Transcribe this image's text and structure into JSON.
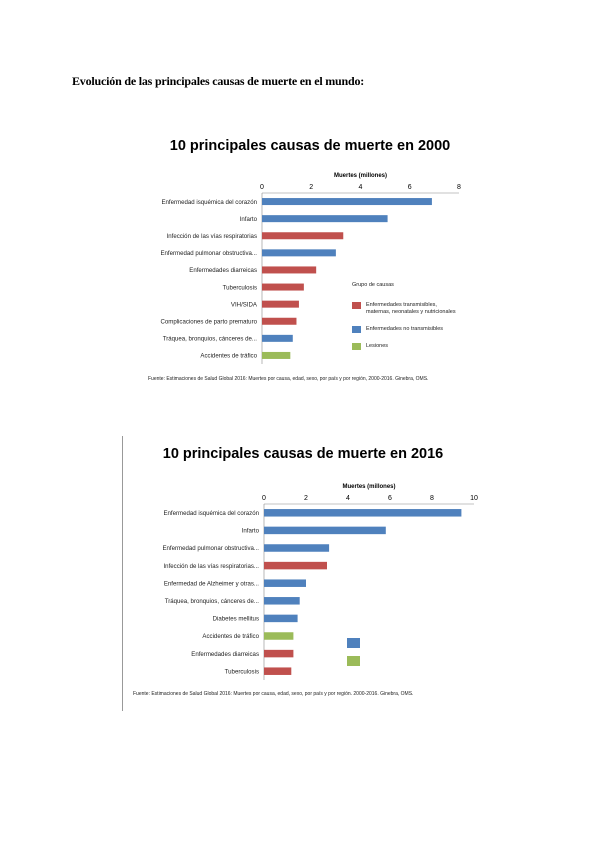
{
  "heading": "Evolución de las principales causas de muerte en el mundo:",
  "colors": {
    "transmissible": "#c0504d",
    "non_transmissible": "#4f81bd",
    "injuries": "#9bbb59"
  },
  "chart_data": [
    {
      "type": "bar",
      "orientation": "horizontal",
      "title": "10 principales causas de muerte en 2000",
      "xlabel": "Muertes (millones)",
      "xlim": [
        0,
        8
      ],
      "xticks": [
        0,
        2,
        4,
        6,
        8
      ],
      "categories": [
        "Enfermedad isquémica del corazón",
        "Infarto",
        "Infección de las vías respiratorias",
        "Enfermedad pulmonar obstructiva...",
        "Enfermedades diarreicas",
        "Tuberculosis",
        "VIH/SIDA",
        "Complicaciones de parto prematuro",
        "Tráquea, bronquios, cánceres de...",
        "Accidentes de tráfico"
      ],
      "values": [
        6.9,
        5.1,
        3.3,
        3.0,
        2.2,
        1.7,
        1.5,
        1.4,
        1.25,
        1.15
      ],
      "groups": [
        "non_transmissible",
        "non_transmissible",
        "transmissible",
        "non_transmissible",
        "transmissible",
        "transmissible",
        "transmissible",
        "transmissible",
        "non_transmissible",
        "injuries"
      ],
      "legend": {
        "title": "Grupo de causas",
        "items": [
          {
            "label": "Enfermedades transmisibles, maternas, neonatales y nutricionales",
            "group": "transmissible"
          },
          {
            "label": "Enfermedades no transmisibles",
            "group": "non_transmissible"
          },
          {
            "label": "Lesiones",
            "group": "injuries"
          }
        ]
      },
      "source": "Fuente: Estimaciones de Salud Global 2016: Muertes por causa, edad, sexo, por país y por región, 2000-2016. Ginebra, OMS."
    },
    {
      "type": "bar",
      "orientation": "horizontal",
      "title": "10 principales causas de muerte en 2016",
      "xlabel": "Muertes (millones)",
      "xlim": [
        0,
        10
      ],
      "xticks": [
        0,
        2,
        4,
        6,
        8,
        10
      ],
      "categories": [
        "Enfermedad isquémica del corazón",
        "Infarto",
        "Enfermedad pulmonar obstructiva...",
        "Infección de las vías respiratorias...",
        "Enfermedad de Alzheimer y otras...",
        "Tráquea, bronquios, cánceres de...",
        "Diabetes mellitus",
        "Accidentes de tráfico",
        "Enfermedades diarreicas",
        "Tuberculosis"
      ],
      "values": [
        9.4,
        5.8,
        3.1,
        3.0,
        2.0,
        1.7,
        1.6,
        1.4,
        1.4,
        1.3
      ],
      "groups": [
        "non_transmissible",
        "non_transmissible",
        "non_transmissible",
        "transmissible",
        "non_transmissible",
        "non_transmissible",
        "non_transmissible",
        "injuries",
        "transmissible",
        "transmissible"
      ],
      "legend": {
        "items": [
          {
            "group": "non_transmissible"
          },
          {
            "group": "injuries"
          }
        ]
      },
      "source": "Fuente: Estimaciones de Salud Global 2016: Muertes por causa, edad, sexo, por país y por región. 2000-2016. Ginebra, OMS."
    }
  ]
}
